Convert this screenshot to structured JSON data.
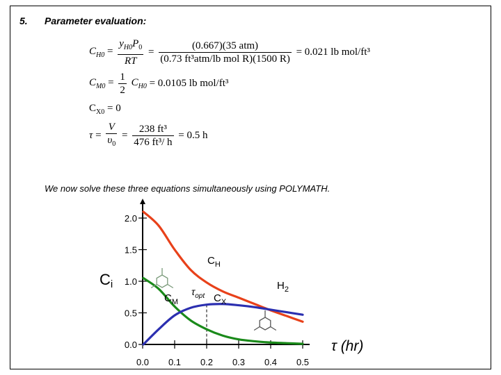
{
  "heading": {
    "number": "5.",
    "title": "Parameter evaluation:"
  },
  "equations": {
    "ch0": {
      "lhs": "C",
      "lhs_sub": "H0",
      "f1_num": "y",
      "f1_num_sub": "H0",
      "f1_num_b": "P",
      "f1_num_b_sub": "0",
      "f1_den": "RT",
      "f2_num": "(0.667)(35 atm)",
      "f2_den": "(0.73 ft³atm/lb mol R)(1500 R)",
      "result": "= 0.021   lb mol/ft³"
    },
    "cm0": {
      "lhs": "C",
      "lhs_sub": "M0",
      "half_num": "1",
      "half_den": "2",
      "rhs": "C",
      "rhs_sub": "H0",
      "result": "= 0.0105   lb mol/ft³"
    },
    "cx0": {
      "text": "C",
      "sub": "X0",
      "result": " = 0"
    },
    "tau": {
      "lhs": "τ",
      "f1_num": "V",
      "f1_den": "υ",
      "f1_den_sub": "0",
      "f2_num": "238 ft³",
      "f2_den": "476 ft³/ h",
      "result": "= 0.5 h"
    }
  },
  "note": "We now solve these three equations simultaneously using POLYMATH.",
  "chart_data": {
    "type": "line",
    "x": [
      0.0,
      0.05,
      0.1,
      0.15,
      0.2,
      0.25,
      0.3,
      0.35,
      0.4,
      0.45,
      0.5
    ],
    "series": [
      {
        "name": "C_H",
        "color": "#e8411a",
        "values": [
          2.1,
          1.88,
          1.5,
          1.18,
          0.98,
          0.84,
          0.74,
          0.64,
          0.54,
          0.45,
          0.36
        ]
      },
      {
        "name": "C_M",
        "color": "#1a8a1a",
        "values": [
          1.05,
          0.88,
          0.6,
          0.38,
          0.24,
          0.14,
          0.08,
          0.05,
          0.03,
          0.02,
          0.01
        ]
      },
      {
        "name": "C_X",
        "color": "#2b2fb0",
        "values": [
          0.0,
          0.24,
          0.46,
          0.58,
          0.63,
          0.64,
          0.62,
          0.59,
          0.55,
          0.51,
          0.47
        ]
      }
    ],
    "xticks": [
      "0.0",
      "0.1",
      "0.2",
      "0.3",
      "0.4",
      "0.5"
    ],
    "yticks": [
      "0.0",
      "0.5",
      "1.0",
      "1.5",
      "2.0"
    ],
    "xlim": [
      0,
      0.5
    ],
    "ylim": [
      0,
      2.2
    ],
    "ylabel": "C",
    "ylabel_sub": "i",
    "xlabel": "τ (hr)",
    "labels": {
      "ch": "C",
      "ch_sub": "H",
      "h2": "H",
      "h2_sub": "2",
      "cm": "C",
      "cm_sub": "M",
      "cx": "C",
      "cx_sub": "X",
      "topt": "τ",
      "topt_sub": "opt"
    },
    "tau_opt": 0.2,
    "grid": false
  }
}
